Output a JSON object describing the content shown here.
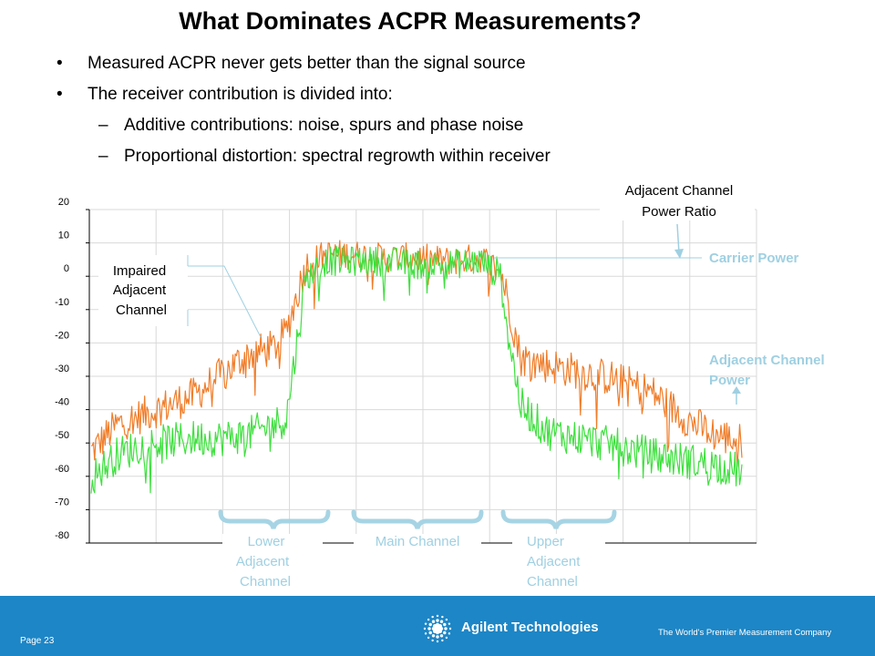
{
  "slide": {
    "title": "What Dominates ACPR Measurements?",
    "bullets": [
      "Measured ACPR never gets better than the signal source",
      "The receiver contribution is divided into:"
    ],
    "sub_bullets": [
      "Additive contributions: noise, spurs and phase noise",
      "Proportional distortion: spectral regrowth within receiver"
    ],
    "bullet_mark": "•",
    "sub_mark": "–"
  },
  "chart_data": {
    "type": "line",
    "ylim": [
      -80,
      20
    ],
    "y_ticks": [
      "20",
      "10",
      "0",
      "-10",
      "-20",
      "-30",
      "-40",
      "-50",
      "-60",
      "-70",
      "-80"
    ],
    "grid": true,
    "series": [
      {
        "color": "#f07d2a",
        "shape_x": [
          0,
          0.04,
          0.08,
          0.12,
          0.16,
          0.2,
          0.24,
          0.28,
          0.3,
          0.33,
          0.36,
          0.4,
          0.45,
          0.5,
          0.55,
          0.6,
          0.63,
          0.66,
          0.7,
          0.75,
          0.8,
          0.86,
          0.92,
          0.96,
          1.0
        ],
        "shape_y": [
          -52,
          -44,
          -41,
          -38,
          -35,
          -29,
          -23,
          -21,
          -16,
          4,
          7,
          7,
          6,
          6,
          5,
          6,
          2,
          -24,
          -26,
          -28,
          -30,
          -34,
          -43,
          -47,
          -49
        ]
      },
      {
        "color": "#3fe03f",
        "shape_x": [
          0,
          0.04,
          0.08,
          0.12,
          0.16,
          0.2,
          0.24,
          0.28,
          0.3,
          0.33,
          0.36,
          0.4,
          0.45,
          0.5,
          0.55,
          0.6,
          0.63,
          0.64,
          0.66,
          0.7,
          0.75,
          0.8,
          0.86,
          0.92,
          0.96,
          1.0
        ],
        "shape_y": [
          -60,
          -53,
          -50,
          -49,
          -48,
          -48,
          -47,
          -44,
          -42,
          0,
          5,
          5,
          5,
          4,
          4,
          5,
          0,
          -16,
          -38,
          -46,
          -48,
          -50,
          -53,
          -55,
          -56,
          -58
        ]
      }
    ]
  },
  "annotations": {
    "impaired": [
      "Impaired",
      "Adjacent",
      "Channel"
    ],
    "acpr_label": [
      "Adjacent Channel",
      "Power Ratio"
    ],
    "carrier_power": "Carrier Power",
    "acp_label": [
      "Adjacent Channel",
      "Power"
    ],
    "lower_adjacent": [
      "Lower",
      "Adjacent",
      "Channel"
    ],
    "main_channel": "Main Channel",
    "upper_adjacent": [
      "Upper",
      "Adjacent",
      "Channel"
    ]
  },
  "colors": {
    "accent_light": "#9fd0e2",
    "footer_blue": "#1d86c6",
    "orange_trace": "#f07d2a",
    "green_trace": "#3fe03f"
  },
  "footer": {
    "page": "Page 23",
    "brand": "Agilent Technologies",
    "brand_icon": "agilent-spark-icon",
    "tagline": "The World's Premier Measurement Company"
  }
}
